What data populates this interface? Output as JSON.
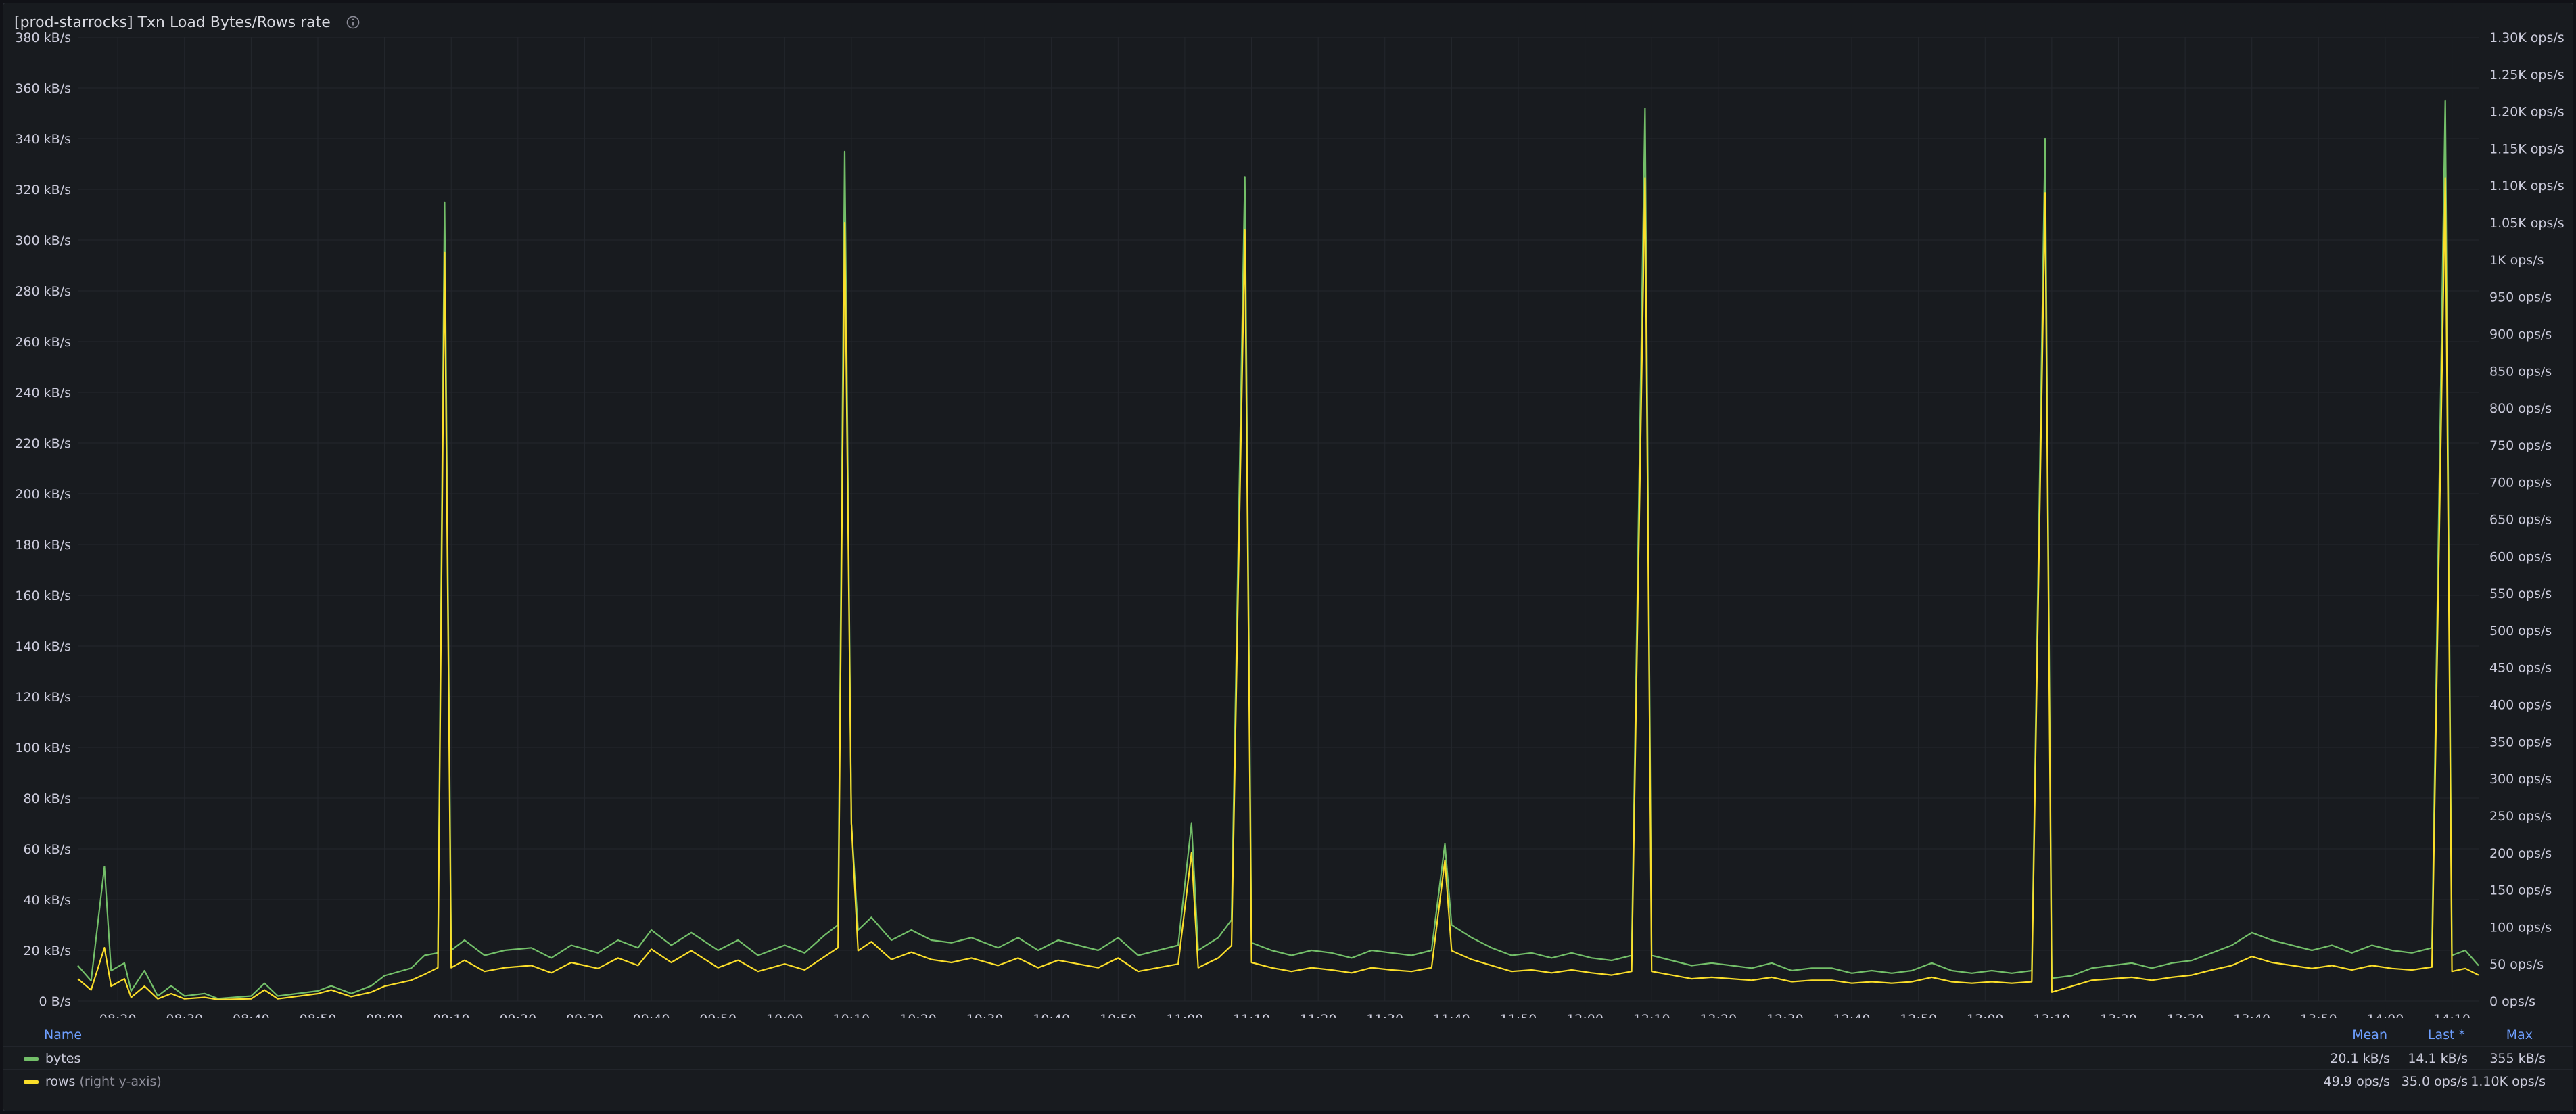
{
  "panel": {
    "title": "[prod-starrocks] Txn Load Bytes/Rows rate",
    "info_icon": "info-icon"
  },
  "legend": {
    "headers": {
      "name": "Name",
      "mean": "Mean",
      "last": "Last *",
      "max": "Max"
    },
    "rows": [
      {
        "name": "bytes",
        "note": "",
        "color": "#73bf69",
        "mean": "20.1 kB/s",
        "last": "14.1 kB/s",
        "max": "355 kB/s"
      },
      {
        "name": "rows",
        "note": "(right y-axis)",
        "color": "#fade2a",
        "mean": "49.9 ops/s",
        "last": "35.0 ops/s",
        "max": "1.10K ops/s"
      }
    ]
  },
  "chart_data": {
    "type": "line",
    "x_label": "",
    "x_tick_labels": [
      "08:20",
      "08:30",
      "08:40",
      "08:50",
      "09:00",
      "09:10",
      "09:20",
      "09:30",
      "09:40",
      "09:50",
      "10:00",
      "10:10",
      "10:20",
      "10:30",
      "10:40",
      "10:50",
      "11:00",
      "11:10",
      "11:20",
      "11:30",
      "11:40",
      "11:50",
      "12:00",
      "12:10",
      "12:20",
      "12:30",
      "12:40",
      "12:50",
      "13:00",
      "13:10",
      "13:20",
      "13:30",
      "13:40",
      "13:50",
      "14:00",
      "14:10"
    ],
    "x_range": [
      "08:14",
      "14:14"
    ],
    "y_left": {
      "unit": "kB/s",
      "range": [
        0,
        380
      ],
      "tick_labels": [
        "0 B/s",
        "20 kB/s",
        "40 kB/s",
        "60 kB/s",
        "80 kB/s",
        "100 kB/s",
        "120 kB/s",
        "140 kB/s",
        "160 kB/s",
        "180 kB/s",
        "200 kB/s",
        "220 kB/s",
        "240 kB/s",
        "260 kB/s",
        "280 kB/s",
        "300 kB/s",
        "320 kB/s",
        "340 kB/s",
        "360 kB/s",
        "380 kB/s"
      ]
    },
    "y_right": {
      "unit": "ops/s",
      "range": [
        0,
        1300
      ],
      "tick_labels": [
        "0 ops/s",
        "50 ops/s",
        "100 ops/s",
        "150 ops/s",
        "200 ops/s",
        "250 ops/s",
        "300 ops/s",
        "350 ops/s",
        "400 ops/s",
        "450 ops/s",
        "500 ops/s",
        "550 ops/s",
        "600 ops/s",
        "650 ops/s",
        "700 ops/s",
        "750 ops/s",
        "800 ops/s",
        "850 ops/s",
        "900 ops/s",
        "950 ops/s",
        "1K ops/s",
        "1.05K ops/s",
        "1.10K ops/s",
        "1.15K ops/s",
        "1.20K ops/s",
        "1.25K ops/s",
        "1.30K ops/s"
      ]
    },
    "grid": true,
    "legend_position": "bottom",
    "series": [
      {
        "name": "bytes",
        "axis": "left",
        "color": "#73bf69",
        "points": [
          [
            "08:14",
            14
          ],
          [
            "08:16",
            8
          ],
          [
            "08:18",
            53
          ],
          [
            "08:19",
            12
          ],
          [
            "08:21",
            15
          ],
          [
            "08:22",
            4
          ],
          [
            "08:24",
            12
          ],
          [
            "08:26",
            2
          ],
          [
            "08:28",
            6
          ],
          [
            "08:30",
            2
          ],
          [
            "08:33",
            3
          ],
          [
            "08:35",
            1
          ],
          [
            "08:40",
            2
          ],
          [
            "08:42",
            7
          ],
          [
            "08:44",
            2
          ],
          [
            "08:50",
            4
          ],
          [
            "08:52",
            6
          ],
          [
            "08:55",
            3
          ],
          [
            "08:58",
            6
          ],
          [
            "09:00",
            10
          ],
          [
            "09:04",
            13
          ],
          [
            "09:06",
            18
          ],
          [
            "09:08",
            19
          ],
          [
            "09:09",
            315
          ],
          [
            "09:10",
            20
          ],
          [
            "09:12",
            24
          ],
          [
            "09:15",
            18
          ],
          [
            "09:18",
            20
          ],
          [
            "09:22",
            21
          ],
          [
            "09:25",
            17
          ],
          [
            "09:28",
            22
          ],
          [
            "09:32",
            19
          ],
          [
            "09:35",
            24
          ],
          [
            "09:38",
            21
          ],
          [
            "09:40",
            28
          ],
          [
            "09:43",
            22
          ],
          [
            "09:46",
            27
          ],
          [
            "09:50",
            20
          ],
          [
            "09:53",
            24
          ],
          [
            "09:56",
            18
          ],
          [
            "10:00",
            22
          ],
          [
            "10:03",
            19
          ],
          [
            "10:06",
            26
          ],
          [
            "10:08",
            30
          ],
          [
            "10:09",
            335
          ],
          [
            "10:10",
            70
          ],
          [
            "10:11",
            28
          ],
          [
            "10:13",
            33
          ],
          [
            "10:16",
            24
          ],
          [
            "10:19",
            28
          ],
          [
            "10:22",
            24
          ],
          [
            "10:25",
            23
          ],
          [
            "10:28",
            25
          ],
          [
            "10:32",
            21
          ],
          [
            "10:35",
            25
          ],
          [
            "10:38",
            20
          ],
          [
            "10:41",
            24
          ],
          [
            "10:44",
            22
          ],
          [
            "10:47",
            20
          ],
          [
            "10:50",
            25
          ],
          [
            "10:53",
            18
          ],
          [
            "10:56",
            20
          ],
          [
            "10:59",
            22
          ],
          [
            "11:01",
            70
          ],
          [
            "11:02",
            20
          ],
          [
            "11:05",
            25
          ],
          [
            "11:07",
            32
          ],
          [
            "11:09",
            325
          ],
          [
            "11:10",
            23
          ],
          [
            "11:13",
            20
          ],
          [
            "11:16",
            18
          ],
          [
            "11:19",
            20
          ],
          [
            "11:22",
            19
          ],
          [
            "11:25",
            17
          ],
          [
            "11:28",
            20
          ],
          [
            "11:31",
            19
          ],
          [
            "11:34",
            18
          ],
          [
            "11:37",
            20
          ],
          [
            "11:39",
            62
          ],
          [
            "11:40",
            30
          ],
          [
            "11:43",
            25
          ],
          [
            "11:46",
            21
          ],
          [
            "11:49",
            18
          ],
          [
            "11:52",
            19
          ],
          [
            "11:55",
            17
          ],
          [
            "11:58",
            19
          ],
          [
            "12:01",
            17
          ],
          [
            "12:04",
            16
          ],
          [
            "12:07",
            18
          ],
          [
            "12:09",
            352
          ],
          [
            "12:10",
            18
          ],
          [
            "12:13",
            16
          ],
          [
            "12:16",
            14
          ],
          [
            "12:19",
            15
          ],
          [
            "12:22",
            14
          ],
          [
            "12:25",
            13
          ],
          [
            "12:28",
            15
          ],
          [
            "12:31",
            12
          ],
          [
            "12:34",
            13
          ],
          [
            "12:37",
            13
          ],
          [
            "12:40",
            11
          ],
          [
            "12:43",
            12
          ],
          [
            "12:46",
            11
          ],
          [
            "12:49",
            12
          ],
          [
            "12:52",
            15
          ],
          [
            "12:55",
            12
          ],
          [
            "12:58",
            11
          ],
          [
            "13:01",
            12
          ],
          [
            "13:04",
            11
          ],
          [
            "13:07",
            12
          ],
          [
            "13:09",
            340
          ],
          [
            "13:10",
            9
          ],
          [
            "13:13",
            10
          ],
          [
            "13:16",
            13
          ],
          [
            "13:19",
            14
          ],
          [
            "13:22",
            15
          ],
          [
            "13:25",
            13
          ],
          [
            "13:28",
            15
          ],
          [
            "13:31",
            16
          ],
          [
            "13:34",
            19
          ],
          [
            "13:37",
            22
          ],
          [
            "13:40",
            27
          ],
          [
            "13:43",
            24
          ],
          [
            "13:46",
            22
          ],
          [
            "13:49",
            20
          ],
          [
            "13:52",
            22
          ],
          [
            "13:55",
            19
          ],
          [
            "13:58",
            22
          ],
          [
            "14:01",
            20
          ],
          [
            "14:04",
            19
          ],
          [
            "14:07",
            21
          ],
          [
            "14:09",
            355
          ],
          [
            "14:10",
            18
          ],
          [
            "14:12",
            20
          ],
          [
            "14:14",
            14
          ]
        ]
      },
      {
        "name": "rows",
        "axis": "right",
        "color": "#fade2a",
        "points": [
          [
            "08:14",
            30
          ],
          [
            "08:16",
            15
          ],
          [
            "08:18",
            72
          ],
          [
            "08:19",
            20
          ],
          [
            "08:21",
            30
          ],
          [
            "08:22",
            5
          ],
          [
            "08:24",
            20
          ],
          [
            "08:26",
            3
          ],
          [
            "08:28",
            10
          ],
          [
            "08:30",
            3
          ],
          [
            "08:33",
            5
          ],
          [
            "08:35",
            2
          ],
          [
            "08:40",
            3
          ],
          [
            "08:42",
            15
          ],
          [
            "08:44",
            3
          ],
          [
            "08:50",
            10
          ],
          [
            "08:52",
            15
          ],
          [
            "08:55",
            6
          ],
          [
            "08:58",
            12
          ],
          [
            "09:00",
            20
          ],
          [
            "09:04",
            28
          ],
          [
            "09:06",
            36
          ],
          [
            "09:08",
            45
          ],
          [
            "09:09",
            1010
          ],
          [
            "09:10",
            45
          ],
          [
            "09:12",
            55
          ],
          [
            "09:15",
            40
          ],
          [
            "09:18",
            45
          ],
          [
            "09:22",
            48
          ],
          [
            "09:25",
            38
          ],
          [
            "09:28",
            52
          ],
          [
            "09:32",
            44
          ],
          [
            "09:35",
            58
          ],
          [
            "09:38",
            48
          ],
          [
            "09:40",
            70
          ],
          [
            "09:43",
            52
          ],
          [
            "09:46",
            68
          ],
          [
            "09:50",
            45
          ],
          [
            "09:53",
            55
          ],
          [
            "09:56",
            40
          ],
          [
            "10:00",
            50
          ],
          [
            "10:03",
            42
          ],
          [
            "10:06",
            60
          ],
          [
            "10:08",
            72
          ],
          [
            "10:09",
            1050
          ],
          [
            "10:10",
            240
          ],
          [
            "10:11",
            68
          ],
          [
            "10:13",
            80
          ],
          [
            "10:16",
            56
          ],
          [
            "10:19",
            66
          ],
          [
            "10:22",
            56
          ],
          [
            "10:25",
            52
          ],
          [
            "10:28",
            58
          ],
          [
            "10:32",
            48
          ],
          [
            "10:35",
            58
          ],
          [
            "10:38",
            45
          ],
          [
            "10:41",
            55
          ],
          [
            "10:44",
            50
          ],
          [
            "10:47",
            45
          ],
          [
            "10:50",
            58
          ],
          [
            "10:53",
            40
          ],
          [
            "10:56",
            45
          ],
          [
            "10:59",
            50
          ],
          [
            "11:01",
            200
          ],
          [
            "11:02",
            45
          ],
          [
            "11:05",
            58
          ],
          [
            "11:07",
            75
          ],
          [
            "11:09",
            1040
          ],
          [
            "11:10",
            52
          ],
          [
            "11:13",
            45
          ],
          [
            "11:16",
            40
          ],
          [
            "11:19",
            45
          ],
          [
            "11:22",
            42
          ],
          [
            "11:25",
            38
          ],
          [
            "11:28",
            45
          ],
          [
            "11:31",
            42
          ],
          [
            "11:34",
            40
          ],
          [
            "11:37",
            45
          ],
          [
            "11:39",
            190
          ],
          [
            "11:40",
            68
          ],
          [
            "11:43",
            56
          ],
          [
            "11:46",
            48
          ],
          [
            "11:49",
            40
          ],
          [
            "11:52",
            42
          ],
          [
            "11:55",
            38
          ],
          [
            "11:58",
            42
          ],
          [
            "12:01",
            38
          ],
          [
            "12:04",
            35
          ],
          [
            "12:07",
            40
          ],
          [
            "12:09",
            1110
          ],
          [
            "12:10",
            40
          ],
          [
            "12:13",
            35
          ],
          [
            "12:16",
            30
          ],
          [
            "12:19",
            32
          ],
          [
            "12:22",
            30
          ],
          [
            "12:25",
            28
          ],
          [
            "12:28",
            32
          ],
          [
            "12:31",
            26
          ],
          [
            "12:34",
            28
          ],
          [
            "12:37",
            28
          ],
          [
            "12:40",
            24
          ],
          [
            "12:43",
            26
          ],
          [
            "12:46",
            24
          ],
          [
            "12:49",
            26
          ],
          [
            "12:52",
            32
          ],
          [
            "12:55",
            26
          ],
          [
            "12:58",
            24
          ],
          [
            "13:01",
            26
          ],
          [
            "13:04",
            24
          ],
          [
            "13:07",
            26
          ],
          [
            "13:09",
            1090
          ],
          [
            "13:10",
            12
          ],
          [
            "13:13",
            20
          ],
          [
            "13:16",
            28
          ],
          [
            "13:19",
            30
          ],
          [
            "13:22",
            32
          ],
          [
            "13:25",
            28
          ],
          [
            "13:28",
            32
          ],
          [
            "13:31",
            35
          ],
          [
            "13:34",
            42
          ],
          [
            "13:37",
            48
          ],
          [
            "13:40",
            60
          ],
          [
            "13:43",
            52
          ],
          [
            "13:46",
            48
          ],
          [
            "13:49",
            44
          ],
          [
            "13:52",
            48
          ],
          [
            "13:55",
            42
          ],
          [
            "13:58",
            48
          ],
          [
            "14:01",
            44
          ],
          [
            "14:04",
            42
          ],
          [
            "14:07",
            46
          ],
          [
            "14:09",
            1110
          ],
          [
            "14:10",
            40
          ],
          [
            "14:12",
            44
          ],
          [
            "14:14",
            35
          ]
        ]
      }
    ]
  }
}
